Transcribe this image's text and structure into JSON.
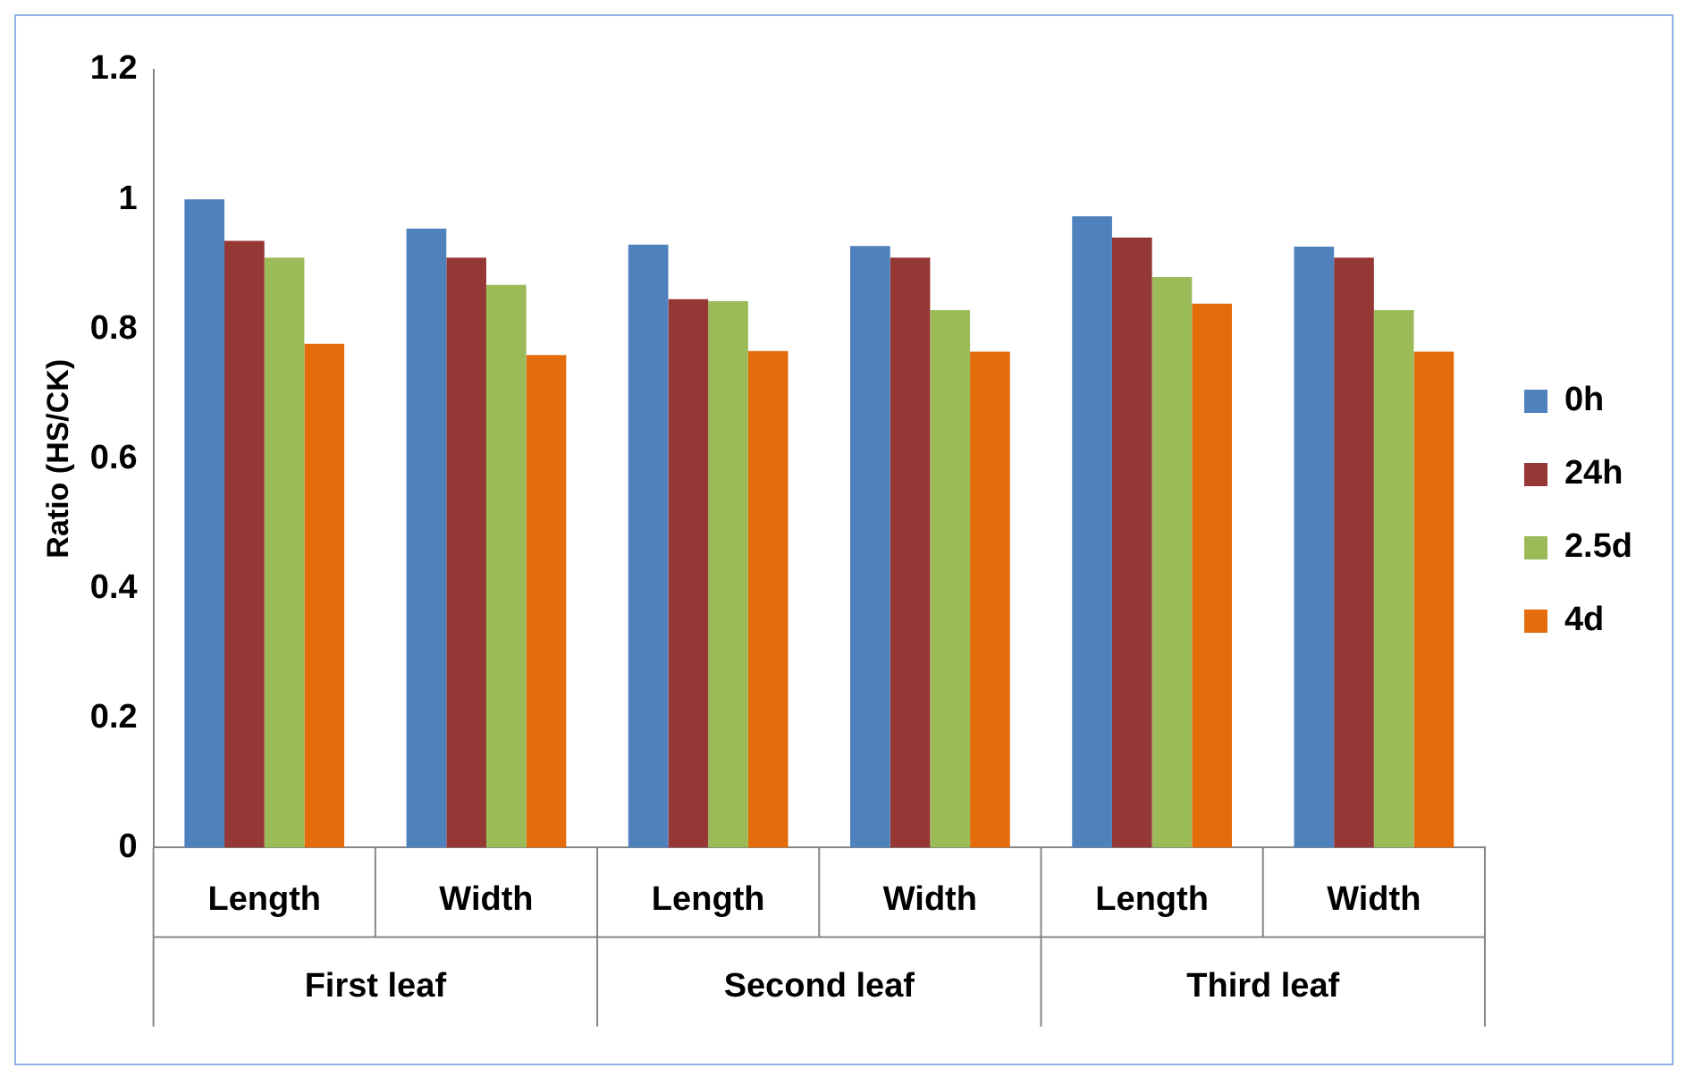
{
  "chart_data": {
    "type": "bar",
    "ylabel": "Ratio (HS/CK)",
    "categories": [
      "Length",
      "Width",
      "Length",
      "Width",
      "Length",
      "Width"
    ],
    "series": [
      {
        "name": "0h",
        "color": "#4f81bd",
        "values": [
          1.0,
          0.955,
          0.93,
          0.928,
          0.974,
          0.927
        ]
      },
      {
        "name": "24h",
        "color": "#953735",
        "values": [
          0.936,
          0.91,
          0.846,
          0.91,
          0.941,
          0.91
        ]
      },
      {
        "name": "2.5d",
        "color": "#9bbb59",
        "values": [
          0.91,
          0.868,
          0.843,
          0.829,
          0.88,
          0.829
        ]
      },
      {
        "name": "4d",
        "color": "#e46c0a",
        "values": [
          0.777,
          0.76,
          0.766,
          0.765,
          0.839,
          0.765
        ]
      }
    ],
    "annotations": [
      "First leaf",
      "Second leaf",
      "Third leaf"
    ],
    "ylim": [
      0,
      1.2
    ],
    "yticks": [
      0,
      0.2,
      0.4,
      0.6,
      0.8,
      1,
      1.2
    ],
    "grid": false,
    "legend": "right"
  }
}
